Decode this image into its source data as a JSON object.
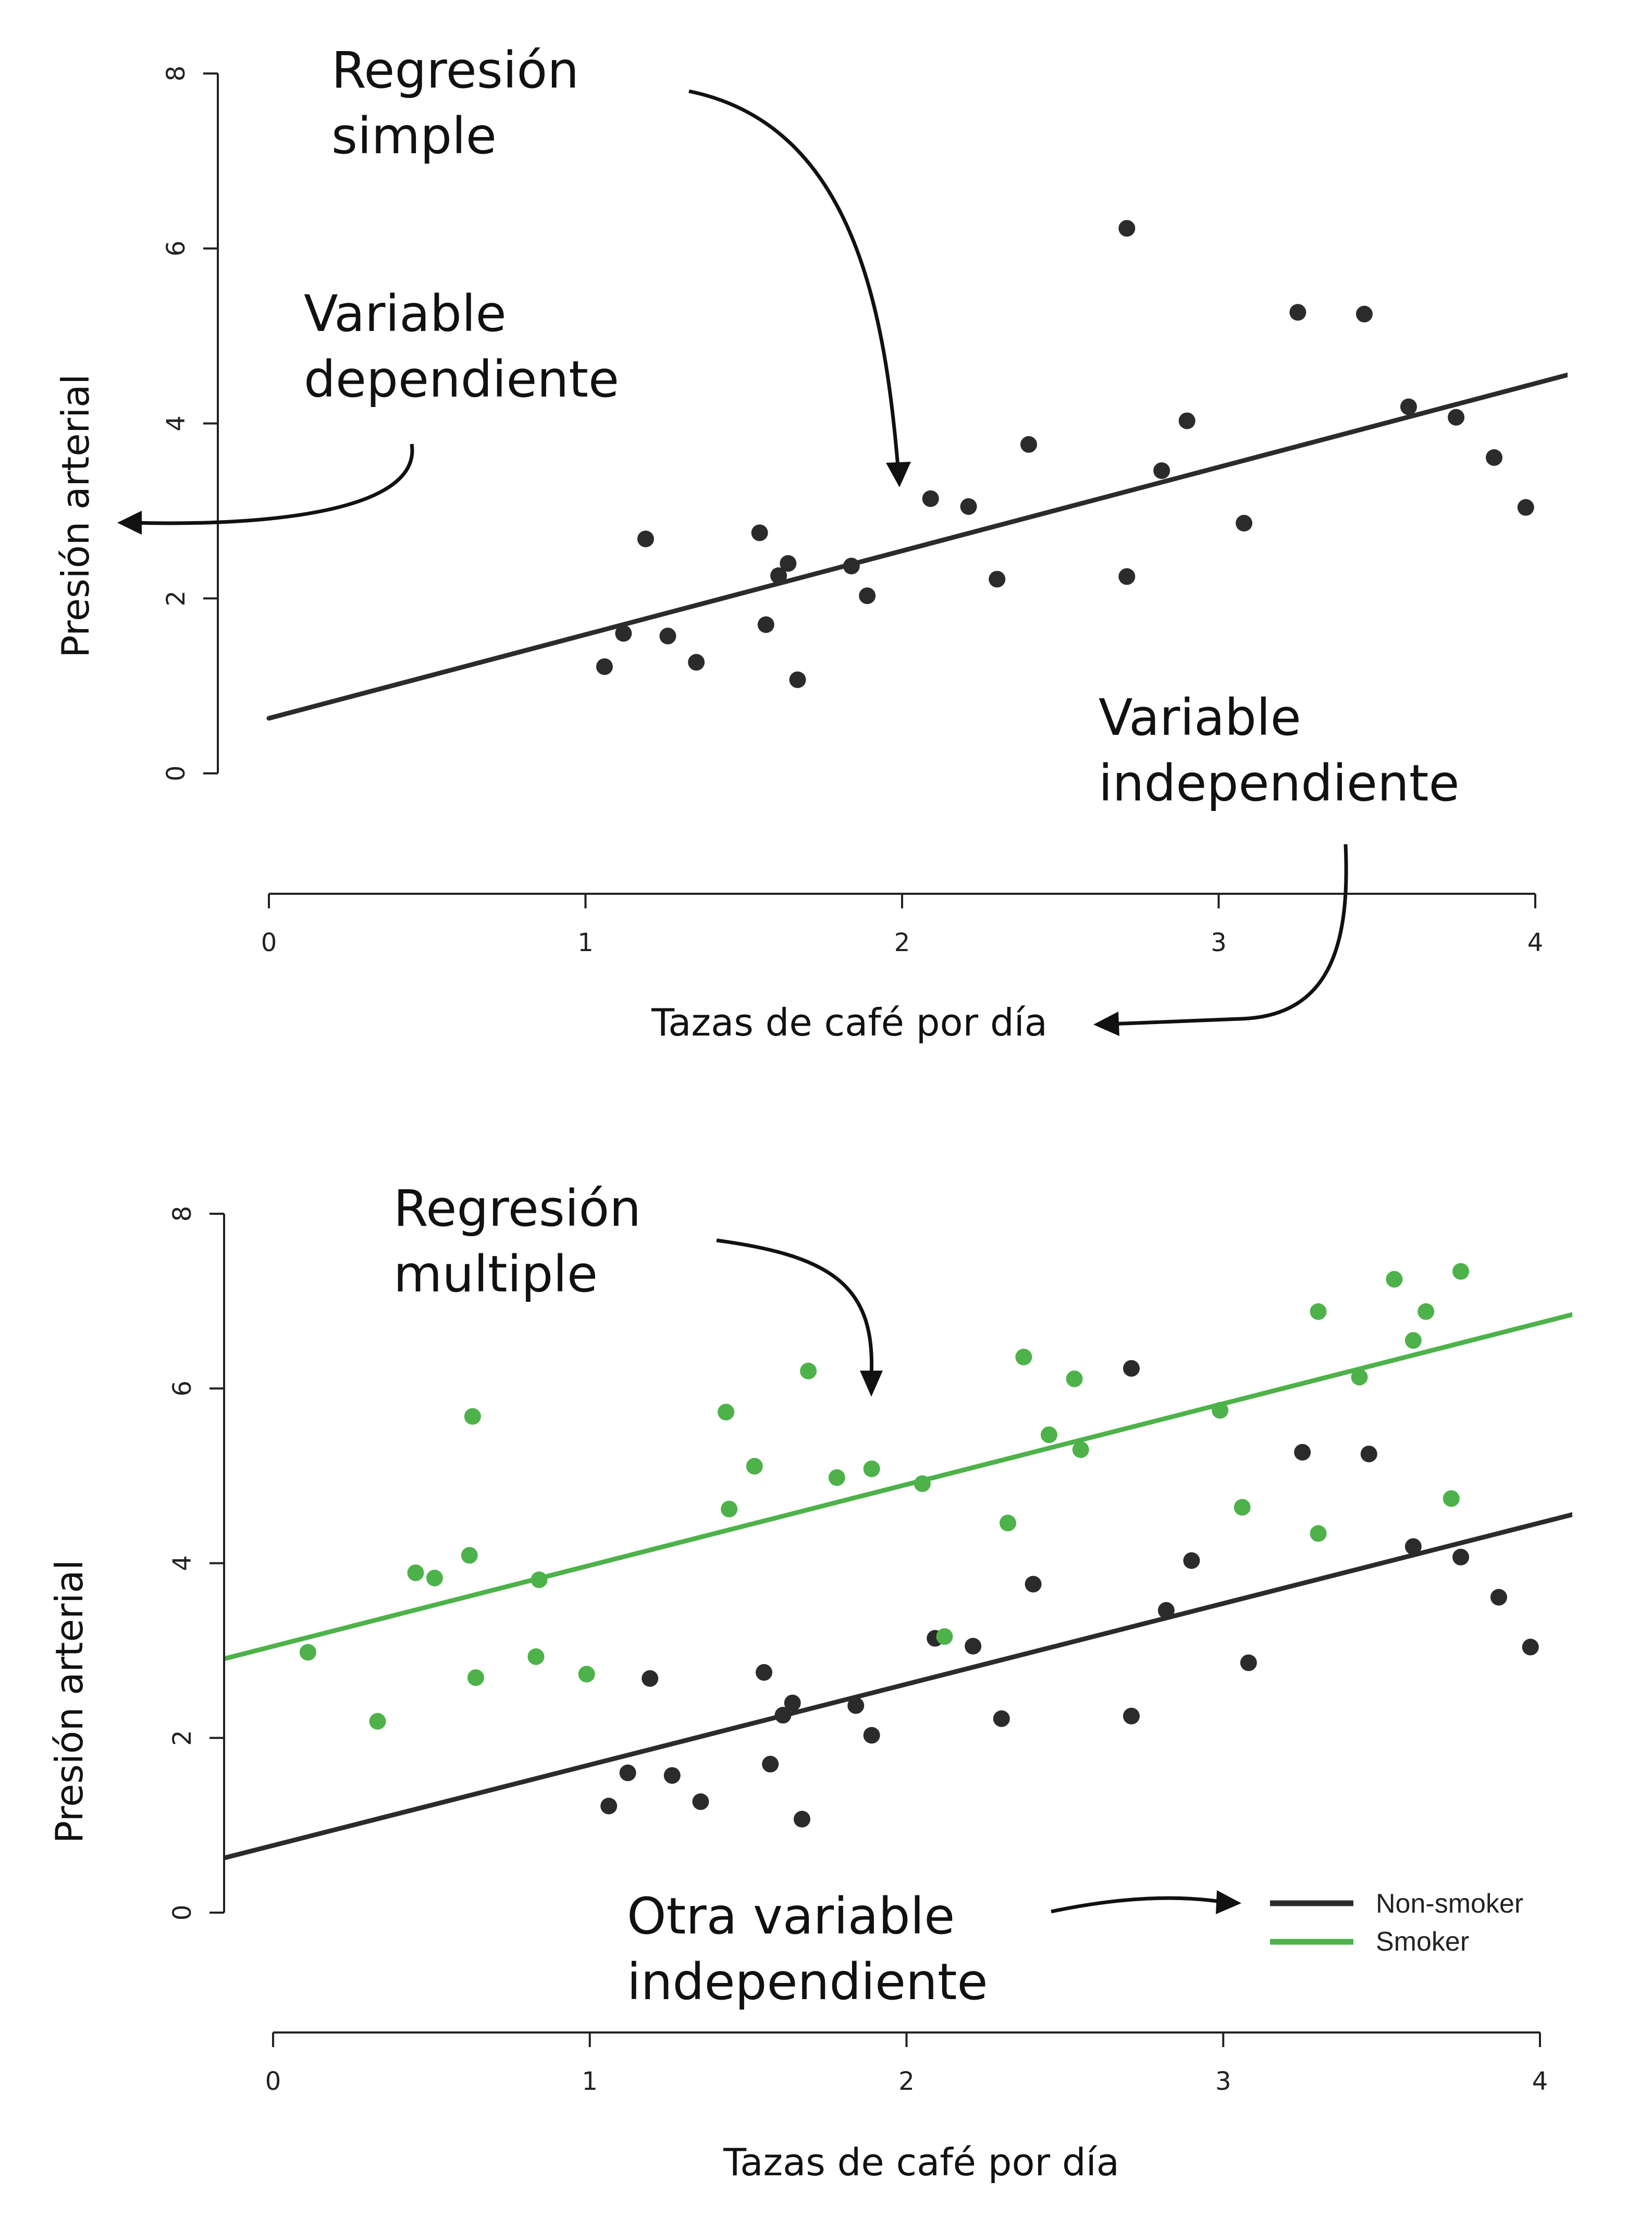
{
  "colors": {
    "non_smoker": "#2b2b2b",
    "smoker": "#4db24a",
    "axis": "#222222",
    "annotation": "#111111"
  },
  "chart_data": [
    {
      "type": "scatter",
      "title": "",
      "xlabel": "Tazas de café por día",
      "ylabel": "Presión arterial",
      "xlim": [
        0,
        4
      ],
      "ylim": [
        0,
        8
      ],
      "x_ticks": [
        0,
        1,
        2,
        3,
        4
      ],
      "y_ticks": [
        0,
        2,
        4,
        6,
        8
      ],
      "grid": false,
      "series": [
        {
          "color": "#2b2b2b",
          "points": [
            [
              1.06,
              1.22
            ],
            [
              1.12,
              1.6
            ],
            [
              1.19,
              2.68
            ],
            [
              1.26,
              1.57
            ],
            [
              1.35,
              1.27
            ],
            [
              1.55,
              2.75
            ],
            [
              1.57,
              1.7
            ],
            [
              1.61,
              2.26
            ],
            [
              1.64,
              2.4
            ],
            [
              1.67,
              1.07
            ],
            [
              1.84,
              2.37
            ],
            [
              1.89,
              2.03
            ],
            [
              2.09,
              3.14
            ],
            [
              2.21,
              3.05
            ],
            [
              2.3,
              2.22
            ],
            [
              2.4,
              3.76
            ],
            [
              2.71,
              6.23
            ],
            [
              2.71,
              2.25
            ],
            [
              2.82,
              3.46
            ],
            [
              2.9,
              4.03
            ],
            [
              3.08,
              2.86
            ],
            [
              3.25,
              5.27
            ],
            [
              3.46,
              5.25
            ],
            [
              3.6,
              4.19
            ],
            [
              3.75,
              4.07
            ],
            [
              3.87,
              3.61
            ],
            [
              3.97,
              3.04
            ]
          ],
          "fit_line": [
            [
              0,
              0.63
            ],
            [
              4.16,
              4.61
            ]
          ]
        }
      ],
      "annotations": [
        {
          "lines": [
            "Regresión",
            "simple"
          ]
        },
        {
          "lines": [
            "Variable",
            "dependiente"
          ]
        },
        {
          "lines": [
            "Variable",
            "independiente"
          ]
        }
      ]
    },
    {
      "type": "scatter",
      "title": "",
      "xlabel": "Tazas de café por día",
      "ylabel": "Presión arterial",
      "xlim": [
        0,
        4
      ],
      "ylim": [
        0,
        8
      ],
      "x_ticks": [
        0,
        1,
        2,
        3,
        4
      ],
      "y_ticks": [
        0,
        2,
        4,
        6,
        8
      ],
      "grid": false,
      "legend_position": "bottom-right",
      "series": [
        {
          "name": "Non-smoker",
          "color": "#2b2b2b",
          "points": [
            [
              1.06,
              1.22
            ],
            [
              1.12,
              1.6
            ],
            [
              1.19,
              2.68
            ],
            [
              1.26,
              1.57
            ],
            [
              1.35,
              1.27
            ],
            [
              1.55,
              2.75
            ],
            [
              1.57,
              1.7
            ],
            [
              1.61,
              2.26
            ],
            [
              1.64,
              2.4
            ],
            [
              1.67,
              1.07
            ],
            [
              1.84,
              2.37
            ],
            [
              1.89,
              2.03
            ],
            [
              2.09,
              3.14
            ],
            [
              2.21,
              3.05
            ],
            [
              2.3,
              2.22
            ],
            [
              2.4,
              3.76
            ],
            [
              2.71,
              6.23
            ],
            [
              2.71,
              2.25
            ],
            [
              2.82,
              3.46
            ],
            [
              2.9,
              4.03
            ],
            [
              3.08,
              2.86
            ],
            [
              3.25,
              5.27
            ],
            [
              3.46,
              5.25
            ],
            [
              3.6,
              4.19
            ],
            [
              3.75,
              4.07
            ],
            [
              3.87,
              3.61
            ],
            [
              3.97,
              3.04
            ]
          ],
          "fit_line": [
            [
              -0.15,
              0.63
            ],
            [
              4.16,
              4.61
            ]
          ]
        },
        {
          "name": "Smoker",
          "color": "#4db24a",
          "points": [
            [
              0.11,
              2.98
            ],
            [
              0.33,
              2.19
            ],
            [
              0.45,
              3.89
            ],
            [
              0.51,
              3.83
            ],
            [
              0.62,
              4.09
            ],
            [
              0.63,
              5.68
            ],
            [
              0.64,
              2.69
            ],
            [
              0.83,
              2.93
            ],
            [
              0.84,
              3.81
            ],
            [
              0.99,
              2.73
            ],
            [
              1.43,
              5.73
            ],
            [
              1.44,
              4.62
            ],
            [
              1.52,
              5.11
            ],
            [
              1.69,
              6.2
            ],
            [
              1.78,
              4.98
            ],
            [
              1.89,
              5.08
            ],
            [
              2.05,
              4.91
            ],
            [
              2.12,
              3.16
            ],
            [
              2.32,
              4.46
            ],
            [
              2.37,
              6.36
            ],
            [
              2.45,
              5.47
            ],
            [
              2.53,
              6.11
            ],
            [
              2.55,
              5.3
            ],
            [
              2.99,
              5.75
            ],
            [
              3.06,
              4.64
            ],
            [
              3.3,
              6.88
            ],
            [
              3.3,
              4.34
            ],
            [
              3.43,
              6.13
            ],
            [
              3.54,
              7.25
            ],
            [
              3.6,
              6.55
            ],
            [
              3.64,
              6.88
            ],
            [
              3.72,
              4.74
            ],
            [
              3.75,
              7.34
            ]
          ],
          "fit_line": [
            [
              -0.15,
              2.91
            ],
            [
              4.16,
              6.9
            ]
          ]
        }
      ],
      "annotations": [
        {
          "lines": [
            "Regresión",
            "multiple"
          ]
        },
        {
          "lines": [
            "Otra variable",
            "independiente"
          ]
        }
      ]
    }
  ]
}
